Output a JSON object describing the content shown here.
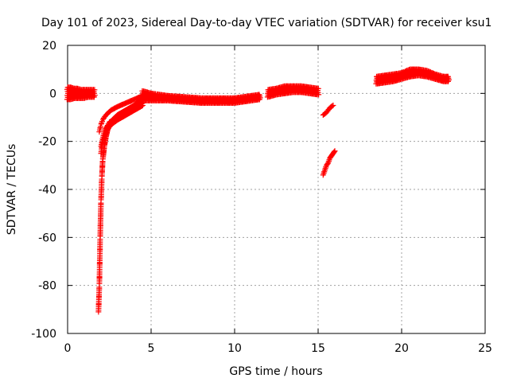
{
  "chart_data": {
    "type": "scatter",
    "title": "Day 101 of 2023, Sidereal Day-to-day VTEC variation (SDTVAR) for receiver ksu1",
    "xlabel": "GPS time / hours",
    "ylabel": "SDTVAR / TECUs",
    "xlim": [
      0,
      25
    ],
    "ylim": [
      -100,
      20
    ],
    "xticks": [
      0,
      5,
      10,
      15,
      20,
      25
    ],
    "yticks": [
      -100,
      -80,
      -60,
      -40,
      -20,
      0,
      20
    ],
    "x_tick_labels": [
      "0",
      "5",
      "10",
      "15",
      "20",
      "25"
    ],
    "y_tick_labels": [
      "-100",
      "-80",
      "-60",
      "-40",
      "-20",
      "0",
      "20"
    ],
    "grid": true,
    "marker": "+",
    "colors": {
      "series": "#ff0000",
      "grid": "#a0a0a0",
      "axis": "#000000"
    },
    "series": [
      {
        "name": "SDTVAR",
        "segments": [
          {
            "label": "early-cluster",
            "x": [
              0,
              0.2,
              0.4,
              0.6,
              0.8,
              1.0,
              1.2,
              1.4,
              1.6
            ],
            "y_bands": [
              [
                -2.5,
                2.5
              ],
              [
                -2.5,
                2.5
              ],
              [
                -2,
                2
              ],
              [
                -2,
                2
              ],
              [
                -2,
                1.5
              ],
              [
                -2,
                1.5
              ],
              [
                -1.5,
                1.5
              ],
              [
                -1.5,
                1.5
              ],
              [
                -1.5,
                1.5
              ]
            ]
          },
          {
            "label": "dip-floor",
            "x": [
              1.85,
              1.9,
              1.95,
              2.0,
              2.05,
              2.1,
              2.2,
              2.3,
              2.4,
              2.5,
              2.7,
              3.0,
              3.5,
              4.0,
              4.5
            ],
            "y": [
              -91,
              -80,
              -60,
              -45,
              -35,
              -28,
              -22,
              -18,
              -15,
              -13,
              -11,
              -9,
              -7,
              -5,
              -2
            ]
          },
          {
            "label": "dip-upper-1",
            "x": [
              1.9,
              2.0,
              2.1,
              2.3,
              2.6,
              3.0,
              3.5,
              4.0,
              4.5
            ],
            "y": [
              -16,
              -13,
              -11,
              -9,
              -7,
              -5.5,
              -4,
              -2.5,
              -1
            ]
          },
          {
            "label": "dip-upper-2",
            "x": [
              2.0,
              2.1,
              2.3,
              2.6,
              3.0,
              3.5,
              4.0,
              4.5
            ],
            "y": [
              -25,
              -20,
              -16,
              -13,
              -11,
              -9,
              -7,
              -5
            ]
          },
          {
            "label": "dip-upper-3",
            "x": [
              2.0,
              2.2,
              2.5,
              3.0,
              3.5,
              4.0,
              4.5
            ],
            "y": [
              -22,
              -16,
              -12,
              -10,
              -8,
              -6,
              -4
            ]
          },
          {
            "label": "midday",
            "x": [
              4.5,
              5.0,
              6.0,
              7.0,
              8.0,
              9.0,
              10.0,
              11.0,
              11.5
            ],
            "y_bands": [
              [
                -3,
                1
              ],
              [
                -3,
                0
              ],
              [
                -3,
                -1
              ],
              [
                -3.5,
                -1.5
              ],
              [
                -4,
                -2
              ],
              [
                -4,
                -2
              ],
              [
                -4,
                -2
              ],
              [
                -3,
                -1
              ],
              [
                -2.5,
                -0.5
              ]
            ]
          },
          {
            "label": "afternoon-rise",
            "x": [
              12.0,
              12.5,
              13.0,
              13.5,
              14.0,
              14.5,
              15.0
            ],
            "y_bands": [
              [
                -1.5,
                1.5
              ],
              [
                -0.5,
                2
              ],
              [
                0,
                3
              ],
              [
                0.5,
                3
              ],
              [
                0.5,
                3
              ],
              [
                0,
                2.5
              ],
              [
                -0.5,
                2
              ]
            ]
          },
          {
            "label": "spike-short",
            "x": [
              15.3,
              15.5,
              15.7,
              15.9
            ],
            "y": [
              -9,
              -8,
              -6,
              -5
            ]
          },
          {
            "label": "spike-long",
            "x": [
              15.3,
              15.4,
              15.5,
              15.6,
              15.7,
              15.8,
              15.9,
              16.0
            ],
            "y": [
              -34,
              -32,
              -30,
              -29,
              -27,
              -26,
              -25,
              -24
            ]
          },
          {
            "label": "evening",
            "x": [
              18.5,
              19.0,
              19.5,
              20.0,
              20.5,
              21.0,
              21.5,
              22.0,
              22.5,
              22.8
            ],
            "y_bands": [
              [
                4,
                7
              ],
              [
                4.5,
                7.5
              ],
              [
                5,
                8
              ],
              [
                6,
                8.5
              ],
              [
                7,
                10
              ],
              [
                7.5,
                10
              ],
              [
                7,
                9.5
              ],
              [
                6,
                8
              ],
              [
                5,
                7
              ],
              [
                5,
                7
              ]
            ]
          }
        ]
      }
    ]
  }
}
